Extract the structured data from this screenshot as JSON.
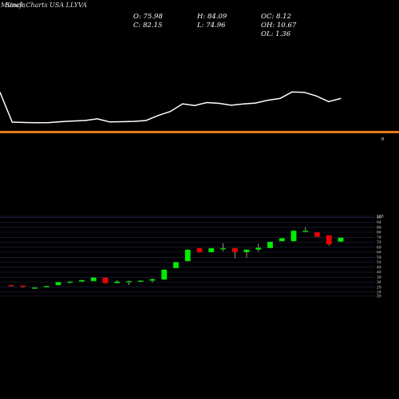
{
  "header": {
    "left_text": "Munafa",
    "overlay_text": "Stock Charts USA LLYVA"
  },
  "ohlc": {
    "open": "O: 75.98",
    "high": "H: 84.09",
    "oc": "OC: 8.12",
    "close": "C: 82.15",
    "low": "L: 74.96",
    "oh": "OH: 10.67",
    "ol": "OL: 1.36"
  },
  "colors": {
    "background": "#000000",
    "line": "#ffffff",
    "divider": "#e87a12",
    "up": "#00ee00",
    "down": "#ee0000",
    "grid": "#2a2a52"
  },
  "panel_label": "0",
  "chart_data": [
    {
      "type": "line",
      "description_series": "price trend line",
      "x": [
        0,
        1,
        2,
        3,
        4,
        5,
        6,
        7,
        8,
        9,
        10,
        11,
        12,
        13,
        14,
        15,
        16,
        17,
        18,
        19,
        20,
        21,
        22,
        23,
        24,
        25,
        26,
        27,
        28
      ],
      "y": [
        82.0,
        29.2,
        28.6,
        28.1,
        28.4,
        30.0,
        31.2,
        32.0,
        35.0,
        29.5,
        30.0,
        30.5,
        32.0,
        41.0,
        48.0,
        61.6,
        58.6,
        63.8,
        62.5,
        59.0,
        61.5,
        63.0,
        68.0,
        71.0,
        82.5,
        82.0,
        75.5,
        65.5,
        71.0
      ]
    },
    {
      "type": "candlestick",
      "ylim": [
        20,
        100
      ],
      "yticks": [
        20,
        24,
        29,
        34,
        39,
        44,
        49,
        54,
        59,
        64,
        69,
        74,
        79,
        84,
        89,
        94,
        99,
        100
      ],
      "candles": [
        {
          "open": 31.0,
          "high": 31.5,
          "low": 30.0,
          "close": 30.0
        },
        {
          "open": 30.5,
          "high": 30.5,
          "low": 28.5,
          "close": 29.2
        },
        {
          "open": 28.6,
          "high": 29.0,
          "low": 27.8,
          "close": 28.6
        },
        {
          "open": 29.0,
          "high": 30.5,
          "low": 28.5,
          "close": 30.0
        },
        {
          "open": 31.0,
          "high": 34.5,
          "low": 30.5,
          "close": 34.0
        },
        {
          "open": 33.5,
          "high": 34.5,
          "low": 32.5,
          "close": 34.5
        },
        {
          "open": 34.5,
          "high": 36.5,
          "low": 34.0,
          "close": 36.0
        },
        {
          "open": 35.0,
          "high": 39.0,
          "low": 35.0,
          "close": 38.5
        },
        {
          "open": 38.5,
          "high": 38.5,
          "low": 32.5,
          "close": 33.0
        },
        {
          "open": 33.0,
          "high": 36.0,
          "low": 32.5,
          "close": 34.5
        },
        {
          "open": 34.5,
          "high": 35.5,
          "low": 31.0,
          "close": 35.0
        },
        {
          "open": 35.0,
          "high": 36.0,
          "low": 34.5,
          "close": 35.5
        },
        {
          "open": 35.5,
          "high": 38.0,
          "low": 33.5,
          "close": 37.0
        },
        {
          "open": 36.5,
          "high": 46.5,
          "low": 36.0,
          "close": 46.5
        },
        {
          "open": 48.0,
          "high": 54.5,
          "low": 48.0,
          "close": 54.0
        },
        {
          "open": 55.0,
          "high": 67.0,
          "low": 54.5,
          "close": 66.5
        },
        {
          "open": 68.0,
          "high": 68.0,
          "low": 63.5,
          "close": 64.0
        },
        {
          "open": 64.0,
          "high": 68.5,
          "low": 63.5,
          "close": 68.0
        },
        {
          "open": 67.0,
          "high": 73.0,
          "low": 65.0,
          "close": 68.0
        },
        {
          "open": 68.0,
          "high": 68.5,
          "low": 58.0,
          "close": 64.0
        },
        {
          "open": 64.0,
          "high": 67.0,
          "low": 58.5,
          "close": 66.5
        },
        {
          "open": 66.5,
          "high": 72.5,
          "low": 64.5,
          "close": 68.5
        },
        {
          "open": 68.0,
          "high": 74.5,
          "low": 68.0,
          "close": 74.5
        },
        {
          "open": 75.0,
          "high": 78.5,
          "low": 74.5,
          "close": 78.0
        },
        {
          "open": 75.0,
          "high": 86.0,
          "low": 74.5,
          "close": 85.5
        },
        {
          "open": 84.5,
          "high": 89.0,
          "low": 84.0,
          "close": 85.5
        },
        {
          "open": 84.0,
          "high": 84.5,
          "low": 79.0,
          "close": 79.5
        },
        {
          "open": 81.0,
          "high": 81.0,
          "low": 70.5,
          "close": 72.0
        },
        {
          "open": 74.5,
          "high": 79.0,
          "low": 74.0,
          "close": 78.5
        }
      ]
    }
  ]
}
